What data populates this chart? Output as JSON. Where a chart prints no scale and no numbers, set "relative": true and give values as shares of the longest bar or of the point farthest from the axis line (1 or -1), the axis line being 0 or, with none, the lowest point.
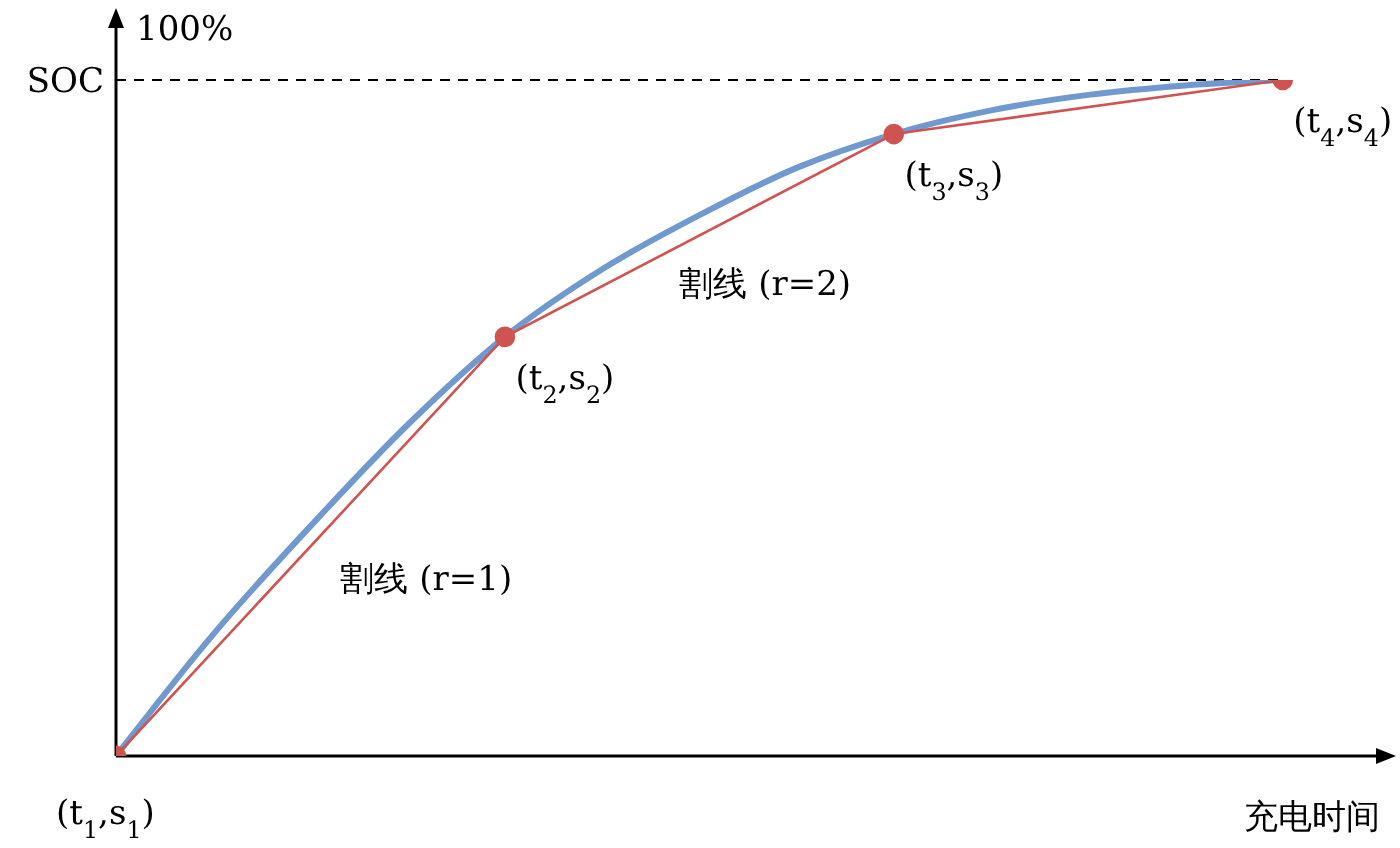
{
  "chart_data": {
    "type": "line",
    "relative": true,
    "ylabel": "100%",
    "xlabel": "充电时间",
    "categories": [
      null,
      null,
      null,
      null,
      null,
      null,
      null,
      null,
      null,
      null,
      null,
      null,
      null,
      null
    ],
    "series": [
      {
        "color": "#7099cf",
        "marker": "none",
        "values": [
          0,
          0.18,
          0.34,
          0.49,
          0.62,
          0.72,
          0.8,
          0.87,
          0.92,
          0.955,
          0.978,
          0.992,
          1,
          null
        ]
      },
      {
        "color": "#cf5350",
        "marker": "circle",
        "values": [
          0,
          null,
          null,
          null,
          0.62,
          null,
          null,
          null,
          0.92,
          null,
          null,
          null,
          1,
          null
        ]
      }
    ],
    "ref_lines": [
      {
        "axis": "y",
        "value": 1,
        "label": "SOC",
        "line_style": "dashed",
        "color": "#000000"
      }
    ],
    "annotations": [
      "(t$_{1}$,s$_{1}$)",
      "(t$_{2}$,s$_{2}$)",
      "(t$_{3}$,s$_{3}$)",
      "(t$_{4}$,s$_{4}$)",
      "割线 (r=1)",
      "割线 (r=2)"
    ]
  }
}
